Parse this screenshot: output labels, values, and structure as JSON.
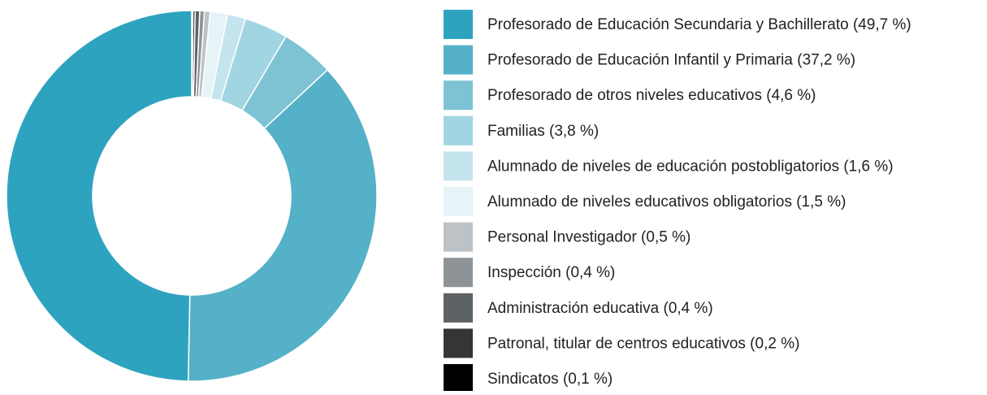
{
  "chart_data": {
    "type": "donut",
    "categories": [
      "Profesorado de Educación Secundaria y Bachillerato (49,7 %)",
      "Profesorado de Educación Infantil y Primaria (37,2 %)",
      "Profesorado de otros niveles educativos (4,6 %)",
      "Familias (3,8 %)",
      "Alumnado de niveles de educación postobligatorios (1,6 %)",
      "Alumnado de niveles educativos obligatorios (1,5 %)",
      "Personal Investigador (0,5 %)",
      "Inspección (0,4 %)",
      "Administración educativa (0,4 %)",
      "Patronal, titular de centros educativos (0,2 %)",
      "Sindicatos (0,1 %)"
    ],
    "values": [
      49.7,
      37.2,
      4.6,
      3.8,
      1.6,
      1.5,
      0.5,
      0.4,
      0.4,
      0.2,
      0.1
    ],
    "colors": [
      "#2ea3bf",
      "#54b1c7",
      "#7dc3d4",
      "#a2d5e2",
      "#c5e5ee",
      "#e6f3f7",
      "#bcc2c5",
      "#8d9396",
      "#5d6265",
      "#333537",
      "#000000"
    ],
    "legend": "right"
  }
}
